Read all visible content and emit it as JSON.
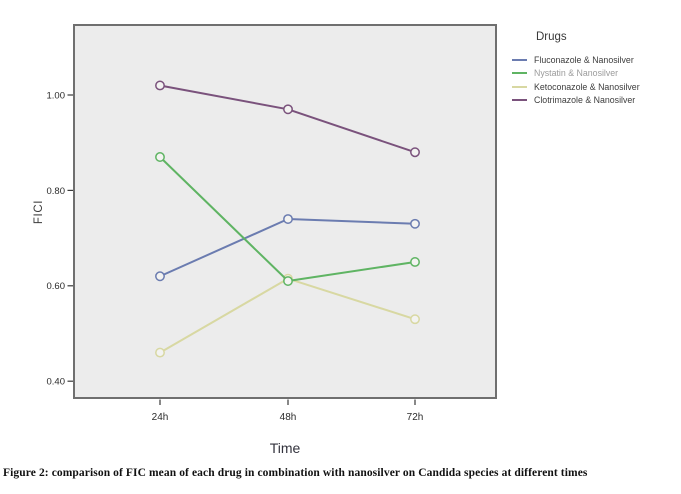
{
  "figure": {
    "caption": "Figure 2: comparison of FIC mean of each drug in combination with nanosilver on Candida species at different times"
  },
  "chart_data": {
    "type": "line",
    "title": "",
    "xlabel": "Time",
    "ylabel": "FICI",
    "categories": [
      "24h",
      "48h",
      "72h"
    ],
    "ylim": [
      0.35,
      1.15
    ],
    "ytick_labels": [
      "1.00",
      "0.80",
      "0.60",
      "0.40"
    ],
    "ytick_values": [
      1.0,
      0.8,
      0.6,
      0.4
    ],
    "grid": false,
    "plot_background": "#ececec",
    "plot_border_color": "#6f6f6f",
    "tick_color": "#3a3a3a",
    "axis_text_color": "#2b2b2b",
    "legend": {
      "title": "Drugs",
      "position": "top-right"
    },
    "series": [
      {
        "name": "Fluconazole & Nanosilver",
        "color": "#6b7cb0",
        "label_color": "#3d3d3d",
        "values": [
          0.62,
          0.74,
          0.73
        ]
      },
      {
        "name": "Nystatin & Nanosilver",
        "color": "#5fb463",
        "label_color": "#9b9b9b",
        "values": [
          0.87,
          0.61,
          0.65
        ]
      },
      {
        "name": "Ketoconazole & Nanosilver",
        "color": "#d8d8a2",
        "label_color": "#3d3d3d",
        "values": [
          0.46,
          0.615,
          0.53
        ]
      },
      {
        "name": "Clotrimazole & Nanosilver",
        "color": "#7a527c",
        "label_color": "#3d3d3d",
        "values": [
          1.02,
          0.97,
          0.88
        ]
      }
    ]
  }
}
